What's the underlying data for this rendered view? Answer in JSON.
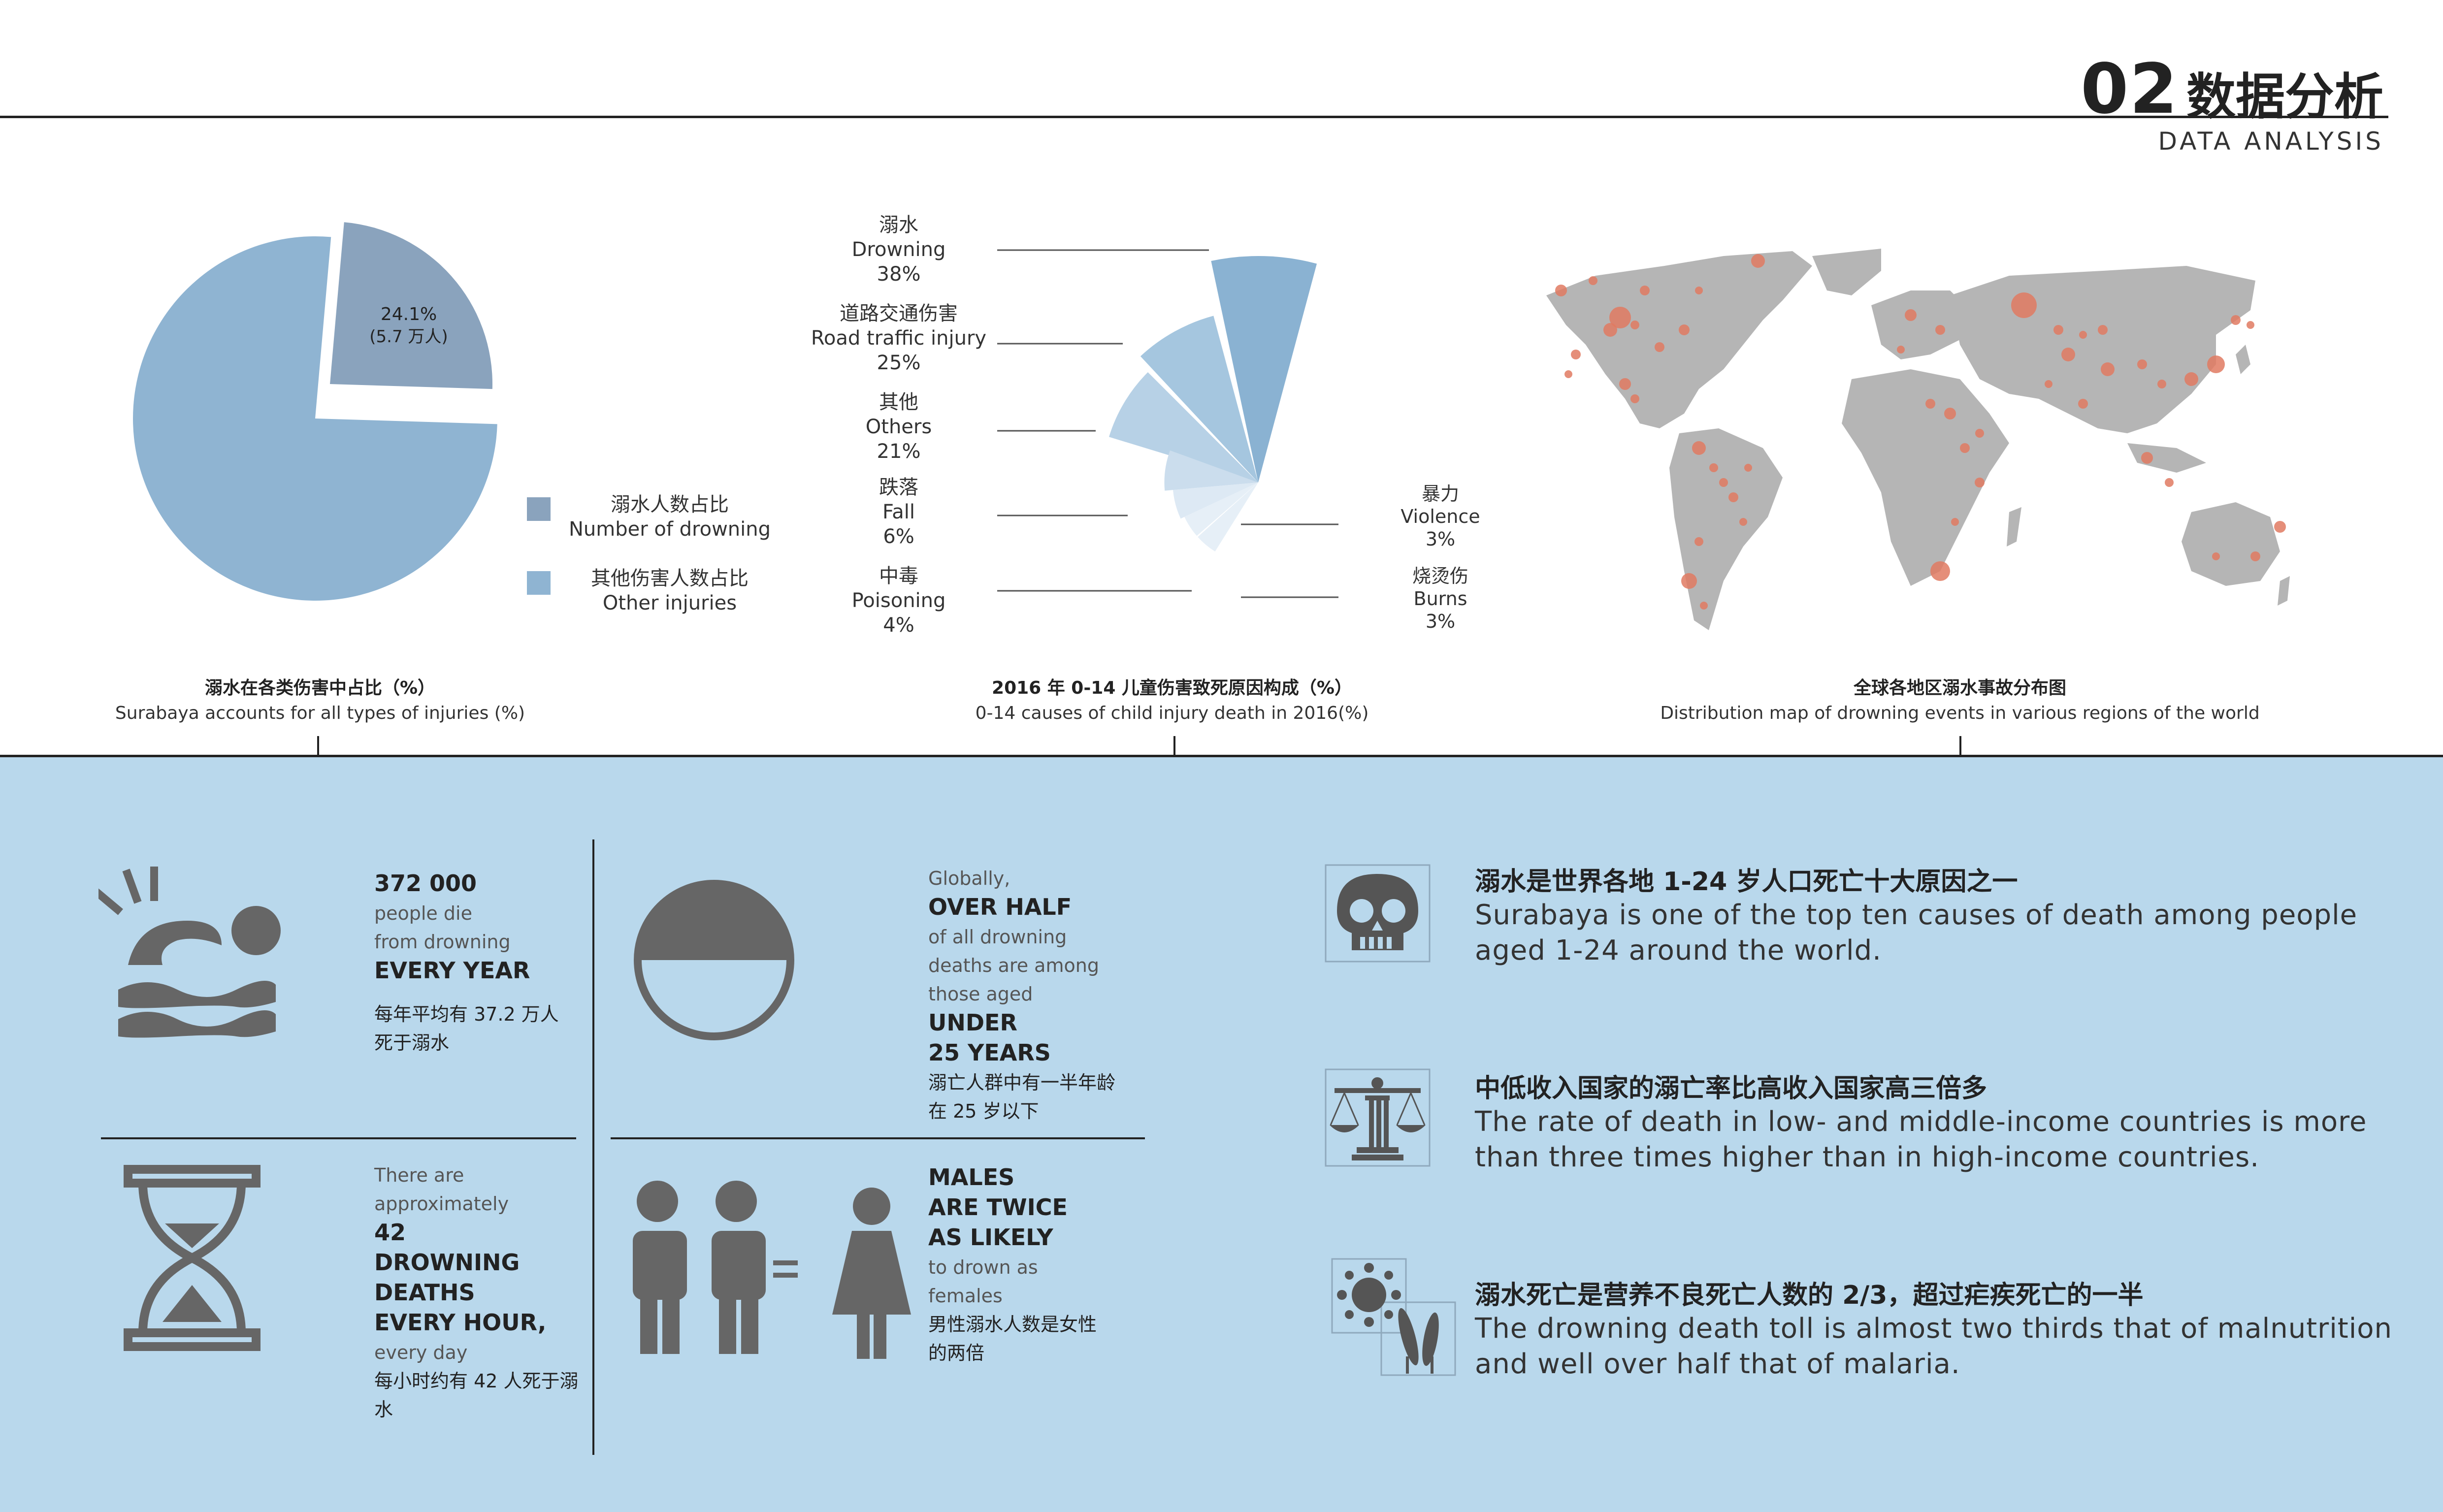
{
  "header": {
    "number": "02",
    "title_cn": "数据分析",
    "title_en": "DATA ANALYSIS"
  },
  "colors": {
    "dark_slice": "#8aa3bd",
    "light_slice": "#8fb4d2",
    "fan": [
      "#8ab2d2",
      "#a5c6df",
      "#b7d1e6",
      "#cbdded",
      "#dde9f4",
      "#e6eff7"
    ],
    "dot": "#e07a62",
    "map": "#b5b5b5",
    "icon": "#666666",
    "panel": "#b9d8ec"
  },
  "chart_data": [
    {
      "type": "pie",
      "title": "溺水在各类伤害中占比（%）",
      "subtitle": "Surabaya accounts for all types of injuries (%)",
      "slices": [
        {
          "name": "溺水人数占比",
          "name_en": "Number of drowning",
          "value": 24.1,
          "label": "24.1%",
          "label2": "(5.7 万人)"
        },
        {
          "name": "其他伤害人数占比",
          "name_en": "Other injuries",
          "value": 75.9
        }
      ]
    },
    {
      "type": "pie",
      "title": "2016 年 0-14 儿童伤害致死原因构成（%）",
      "subtitle": "0-14 causes of child injury death in 2016(%)",
      "slices": [
        {
          "cn": "溺水",
          "en": "Drowning",
          "value": 38,
          "pct": "38%"
        },
        {
          "cn": "道路交通伤害",
          "en": "Road traffic injury",
          "value": 25,
          "pct": "25%"
        },
        {
          "cn": "其他",
          "en": "Others",
          "value": 21,
          "pct": "21%"
        },
        {
          "cn": "跌落",
          "en": "Fall",
          "value": 6,
          "pct": "6%"
        },
        {
          "cn": "中毒",
          "en": "Poisoning",
          "value": 4,
          "pct": "4%"
        },
        {
          "cn": "暴力",
          "en": "Violence",
          "value": 3,
          "pct": "3%"
        },
        {
          "cn": "烧烫伤",
          "en": "Burns",
          "value": 3,
          "pct": "3%"
        }
      ]
    }
  ],
  "map": {
    "title": "全球各地区溺水事故分布图",
    "subtitle": "Distribution map of drowning events in various regions of the world"
  },
  "stats": {
    "s1": {
      "num": "372 000",
      "l1": "people die",
      "l2": "from drowning",
      "big": "EVERY YEAR",
      "cn1": "每年平均有 37.2 万人",
      "cn2": "死于溺水"
    },
    "s2": {
      "l0": "Globally,",
      "big1": "OVER HALF",
      "l1": "of all drowning",
      "l2": "deaths are among",
      "l3": "those aged",
      "big2": "UNDER",
      "big3": "25 YEARS",
      "cn1": "溺亡人群中有一半年龄",
      "cn2": "在 25 岁以下"
    },
    "s3": {
      "l1": "There are",
      "l2": "approximately",
      "big1": "42",
      "big2": "DROWNING",
      "big3": "DEATHS",
      "big4": "EVERY HOUR,",
      "l3": "every day",
      "cn1": "每小时约有 42 人死于溺",
      "cn2": "水"
    },
    "s4": {
      "big1": "MALES",
      "big2": "ARE TWICE",
      "big3": "AS LIKELY",
      "l1": "to drown  as",
      "l2": "females",
      "cn1": "男性溺水人数是女性",
      "cn2": "的两倍"
    }
  },
  "facts": [
    {
      "cn": "溺水是世界各地 1-24 岁人口死亡十大原因之一",
      "en1": "Surabaya is one of the top ten causes of death among people",
      "en2": "aged 1-24 around the world.",
      "icon": "skull-icon"
    },
    {
      "cn": "中低收入国家的溺亡率比高收入国家高三倍多",
      "en1": "The rate of death in low- and middle-income countries is more",
      "en2": "than three times higher than in high-income countries.",
      "icon": "scales-icon"
    },
    {
      "cn": "溺水死亡是营养不良死亡人数的 2/3，超过疟疾死亡的一半",
      "en1": "The drowning death toll is almost two thirds that of malnutrition",
      "en2": "and well over half that of malaria.",
      "icon": "virus-wheat-icon"
    }
  ]
}
